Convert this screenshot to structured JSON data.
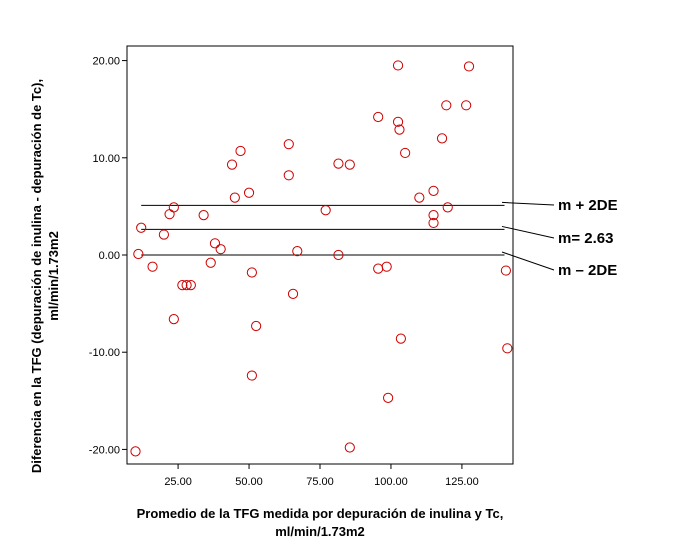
{
  "chart_data": {
    "type": "scatter",
    "title": "",
    "xlabel_lines": [
      "Promedio de la TFG medida por depuración de inulina y Tc,",
      "ml/min/1.73m2"
    ],
    "ylabel_lines": [
      "Diferencia en la TFG  (depuración de inulina - depuración de Tc),",
      "ml/min/1.73m2"
    ],
    "xlim": [
      7,
      143
    ],
    "ylim": [
      -21.5,
      21.5
    ],
    "xticks": [
      25,
      50,
      75,
      100,
      125
    ],
    "xtick_labels": [
      "25.00",
      "50.00",
      "75.00",
      "100.00",
      "125.00"
    ],
    "yticks": [
      -20,
      -10,
      0,
      10,
      20
    ],
    "ytick_labels": [
      "-20.00",
      "-10.00",
      "0.00",
      "10.00",
      "20.00"
    ],
    "marker_color": "#cc0000",
    "marker": "open-circle",
    "grid": false,
    "points": [
      {
        "x": 10,
        "y": -20.2
      },
      {
        "x": 11,
        "y": 0.1
      },
      {
        "x": 12,
        "y": 2.8
      },
      {
        "x": 16,
        "y": -1.2
      },
      {
        "x": 20,
        "y": 2.1
      },
      {
        "x": 22,
        "y": 4.2
      },
      {
        "x": 23.5,
        "y": 4.9
      },
      {
        "x": 23.5,
        "y": -6.6
      },
      {
        "x": 26.5,
        "y": -3.1
      },
      {
        "x": 28,
        "y": -3.1
      },
      {
        "x": 29.5,
        "y": -3.1
      },
      {
        "x": 34,
        "y": 4.1
      },
      {
        "x": 36.5,
        "y": -0.8
      },
      {
        "x": 38,
        "y": 1.2
      },
      {
        "x": 40,
        "y": 0.6
      },
      {
        "x": 44,
        "y": 9.3
      },
      {
        "x": 45,
        "y": 5.9
      },
      {
        "x": 47,
        "y": 10.7
      },
      {
        "x": 50,
        "y": 6.4
      },
      {
        "x": 51,
        "y": -1.8
      },
      {
        "x": 51,
        "y": -12.4
      },
      {
        "x": 52.5,
        "y": -7.3
      },
      {
        "x": 64,
        "y": 11.4
      },
      {
        "x": 64,
        "y": 8.2
      },
      {
        "x": 65.5,
        "y": -4.0
      },
      {
        "x": 67,
        "y": 0.4
      },
      {
        "x": 77,
        "y": 4.6
      },
      {
        "x": 81.5,
        "y": 0.0
      },
      {
        "x": 81.5,
        "y": 9.4
      },
      {
        "x": 85.5,
        "y": 9.3
      },
      {
        "x": 85.5,
        "y": -19.8
      },
      {
        "x": 95.5,
        "y": 14.2
      },
      {
        "x": 95.5,
        "y": -1.4
      },
      {
        "x": 98.5,
        "y": -1.2
      },
      {
        "x": 99,
        "y": -14.7
      },
      {
        "x": 102.5,
        "y": 19.5
      },
      {
        "x": 102.5,
        "y": 13.7
      },
      {
        "x": 103,
        "y": 12.9
      },
      {
        "x": 103.5,
        "y": -8.6
      },
      {
        "x": 105,
        "y": 10.5
      },
      {
        "x": 110,
        "y": 5.9
      },
      {
        "x": 115,
        "y": 6.6
      },
      {
        "x": 115,
        "y": 4.1
      },
      {
        "x": 115,
        "y": 3.3
      },
      {
        "x": 118,
        "y": 12.0
      },
      {
        "x": 119.5,
        "y": 15.4
      },
      {
        "x": 120,
        "y": 4.9
      },
      {
        "x": 126.5,
        "y": 15.4
      },
      {
        "x": 127.5,
        "y": 19.4
      },
      {
        "x": 140.5,
        "y": -1.6
      },
      {
        "x": 141,
        "y": -9.6
      }
    ],
    "reference_lines": [
      {
        "label": "m + 2DE",
        "y": 5.1
      },
      {
        "label": "m= 2.63",
        "y": 2.63
      },
      {
        "label": "m – 2DE",
        "y": 0.0
      }
    ],
    "reference_line_x_range": [
      12,
      140
    ]
  }
}
